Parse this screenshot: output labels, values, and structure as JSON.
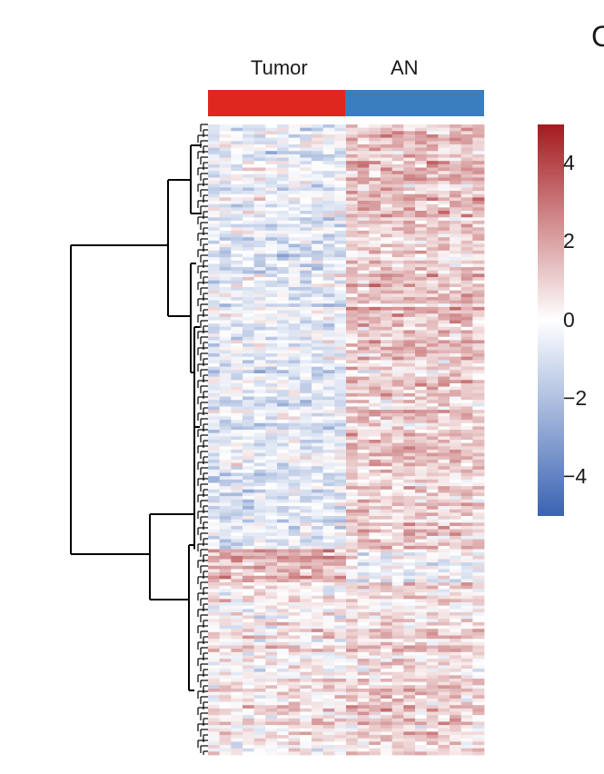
{
  "panel_letter": "C",
  "colors": {
    "tumor": "#e0271f",
    "an": "#3a7ebf",
    "scale_low": "#3a63b3",
    "scale_mid": "#ffffff",
    "scale_high": "#a41a1e"
  },
  "chart_data": {
    "type": "heatmap",
    "title": "",
    "groups": [
      {
        "name": "Tumor",
        "samples": 12
      },
      {
        "name": "AN",
        "samples": 12
      }
    ],
    "rows": 190,
    "row_clusters": [
      {
        "name": "",
        "rows": 128,
        "tumor_mean": -0.6,
        "an_mean": 1.2
      },
      {
        "name": "",
        "rows": 62,
        "tumor_mean": 0.5,
        "an_mean": 1.0
      }
    ],
    "colorbar": {
      "min": -5,
      "max": 5,
      "ticks": [
        4,
        2,
        0,
        -2,
        -4
      ],
      "tick_labels": [
        "4",
        "2",
        "0",
        "−2",
        "−4"
      ]
    },
    "dendrogram": "rows",
    "legend": "right"
  }
}
